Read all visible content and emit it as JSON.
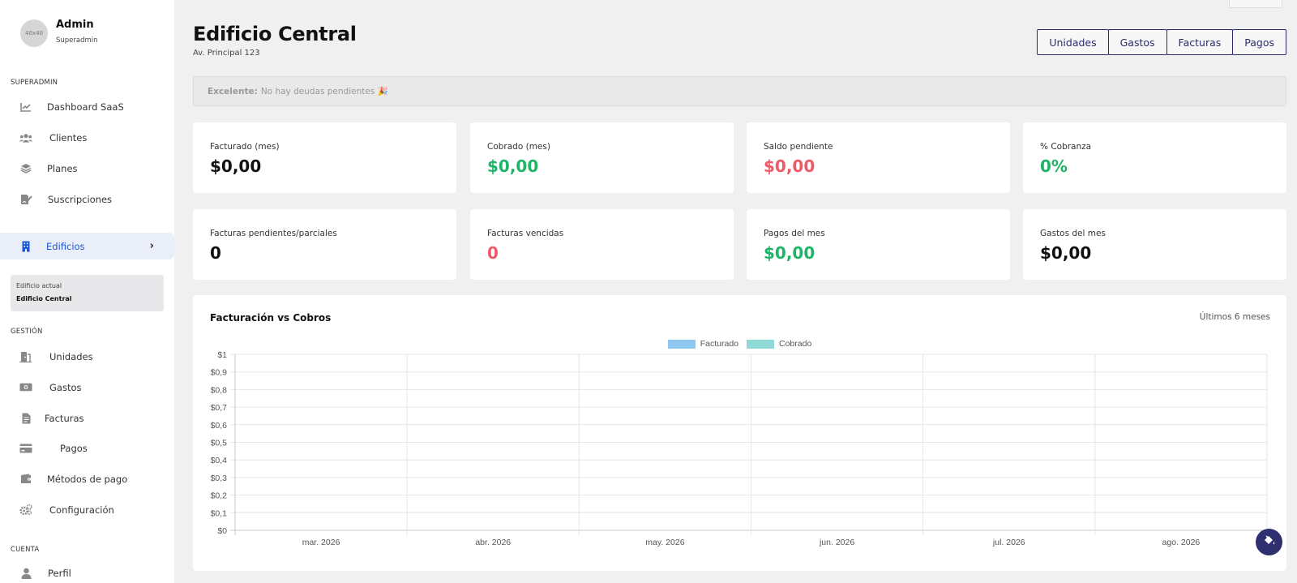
{
  "user": {
    "avatar_text": "40x40",
    "name": "Admin",
    "role": "Superadmin"
  },
  "sidebar": {
    "sections": {
      "superadmin": "SUPERADMIN",
      "gestion": "GESTIÓN",
      "cuenta": "CUENTA"
    },
    "superadmin_items": [
      {
        "label": "Dashboard SaaS",
        "icon": "chart-line-icon"
      },
      {
        "label": "Clientes",
        "icon": "users-icon"
      },
      {
        "label": "Planes",
        "icon": "layers-icon"
      },
      {
        "label": "Suscripciones",
        "icon": "file-signature-icon"
      }
    ],
    "active_item": {
      "label": "Edificios",
      "icon": "building-icon"
    },
    "current_building": {
      "label": "Edificio actual",
      "value": "Edificio Central"
    },
    "gestion_items": [
      {
        "label": "Unidades",
        "icon": "door-icon"
      },
      {
        "label": "Gastos",
        "icon": "money-icon"
      },
      {
        "label": "Facturas",
        "icon": "invoice-icon"
      },
      {
        "label": "Pagos",
        "icon": "credit-card-icon"
      },
      {
        "label": "Métodos de pago",
        "icon": "wallet-icon"
      },
      {
        "label": "Configuración",
        "icon": "cogs-icon"
      }
    ],
    "cuenta_items": [
      {
        "label": "Perfil",
        "icon": "user-icon"
      }
    ]
  },
  "header": {
    "title": "Edificio Central",
    "subtitle": "Av. Principal 123",
    "buttons": [
      "Unidades",
      "Gastos",
      "Facturas",
      "Pagos"
    ]
  },
  "alert": {
    "strong": "Excelente:",
    "text": "No hay deudas pendientes 🎉"
  },
  "cards": [
    {
      "label": "Facturado (mes)",
      "value": "$0,00",
      "color": "#111111"
    },
    {
      "label": "Cobrado (mes)",
      "value": "$0,00",
      "color": "#1fb568"
    },
    {
      "label": "Saldo pendiente",
      "value": "$0,00",
      "color": "#ee5a66"
    },
    {
      "label": "% Cobranza",
      "value": "0%",
      "color": "#1fb568"
    },
    {
      "label": "Facturas pendientes/parciales",
      "value": "0",
      "color": "#111111"
    },
    {
      "label": "Facturas vencidas",
      "value": "0",
      "color": "#ee5a66"
    },
    {
      "label": "Pagos del mes",
      "value": "$0,00",
      "color": "#1fb568"
    },
    {
      "label": "Gastos del mes",
      "value": "$0,00",
      "color": "#111111"
    }
  ],
  "chart_panel": {
    "title": "Facturación vs Cobros",
    "range": "Últimos 6 meses"
  },
  "chart_data": {
    "type": "bar",
    "title": "Facturación vs Cobros",
    "categories": [
      "mar. 2026",
      "abr. 2026",
      "may. 2026",
      "jun. 2026",
      "jul. 2026",
      "ago. 2026"
    ],
    "series": [
      {
        "name": "Facturado",
        "values": [
          0,
          0,
          0,
          0,
          0,
          0
        ],
        "color": "#8ec7f0"
      },
      {
        "name": "Cobrado",
        "values": [
          0,
          0,
          0,
          0,
          0,
          0
        ],
        "color": "#8fd9d6"
      }
    ],
    "ylim": [
      0,
      1
    ],
    "yticks": [
      "$0",
      "$0,1",
      "$0,2",
      "$0,3",
      "$0,4",
      "$0,5",
      "$0,6",
      "$0,7",
      "$0,8",
      "$0,9",
      "$1"
    ],
    "legend": "top-center",
    "grid": true
  }
}
